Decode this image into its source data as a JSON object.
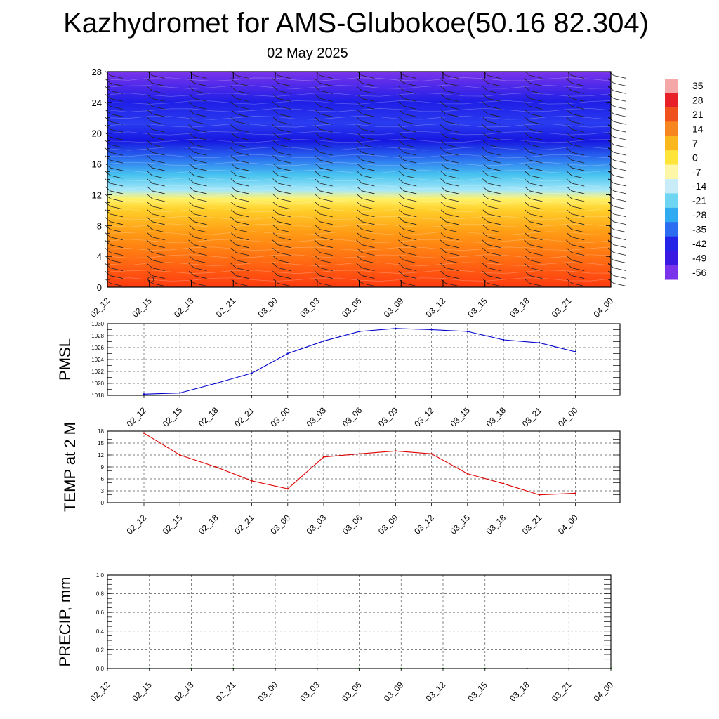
{
  "title": "Kazhydromet for AMS-Glubokoe(50.16 82.304)",
  "subtitle": "02 May 2025",
  "chart_data": [
    {
      "type": "heatmap",
      "id": "cross-section",
      "x": [
        "02_12",
        "02_15",
        "02_18",
        "02_21",
        "03_00",
        "03_03",
        "03_06",
        "03_09",
        "03_12",
        "03_15",
        "03_18",
        "03_21",
        "04_00"
      ],
      "yticks": [
        0,
        4,
        8,
        12,
        16,
        20,
        24,
        28
      ],
      "ylim": [
        0,
        28
      ],
      "levels": [
        0,
        1,
        2,
        3,
        4,
        5,
        6,
        7,
        8,
        9,
        10,
        11,
        12,
        13,
        14,
        15,
        16,
        17,
        18,
        19,
        20,
        21,
        22,
        23,
        24,
        25,
        26,
        27,
        28
      ],
      "temperature_profile": [
        20,
        19,
        18,
        16,
        14,
        12,
        10,
        8,
        6,
        4,
        2,
        0,
        -10,
        -20,
        -28,
        -34,
        -38,
        -45,
        -50,
        -55,
        -56,
        -55,
        -54,
        -55,
        -56,
        -58,
        -58,
        -60,
        -62
      ],
      "colorbar": {
        "labels": [
          "35",
          "28",
          "21",
          "14",
          "7",
          "0",
          "-7",
          "-14",
          "-21",
          "-28",
          "-35",
          "-42",
          "-49",
          "-56"
        ],
        "colors": [
          "#f4a8a8",
          "#e8202a",
          "#f0521e",
          "#f68620",
          "#fbb81e",
          "#ffe53a",
          "#fff7a8",
          "#c8ecf8",
          "#6ed6f2",
          "#30aaf0",
          "#2c6cf0",
          "#2424e8",
          "#3a1ae2",
          "#7a32ea"
        ]
      }
    },
    {
      "type": "line",
      "id": "pmsl",
      "ylabel": "PMSL",
      "x": [
        "02_12",
        "02_15",
        "02_18",
        "02_21",
        "03_00",
        "03_03",
        "03_06",
        "03_09",
        "03_12",
        "03_15",
        "03_18",
        "03_21",
        "04_00"
      ],
      "series": [
        {
          "values": [
            1018.2,
            1018.4,
            1020.0,
            1021.7,
            1025.0,
            1027.1,
            1028.7,
            1029.2,
            1029.0,
            1028.7,
            1027.3,
            1026.8,
            1025.3
          ],
          "color": "#0000cc"
        }
      ],
      "ylim": [
        1018,
        1030
      ],
      "yticks": [
        1018,
        1020,
        1022,
        1024,
        1026,
        1028,
        1030
      ],
      "grid": true
    },
    {
      "type": "line",
      "id": "temp2m",
      "ylabel": "TEMP at 2 M",
      "x": [
        "02_12",
        "02_15",
        "02_18",
        "02_21",
        "03_00",
        "03_03",
        "03_06",
        "03_09",
        "03_12",
        "03_15",
        "03_18",
        "03_21",
        "04_00"
      ],
      "series": [
        {
          "values": [
            17.5,
            12.0,
            9.0,
            5.5,
            3.5,
            11.5,
            12.3,
            13.0,
            12.3,
            7.3,
            4.8,
            2.0,
            2.4
          ],
          "color": "#dd0000"
        }
      ],
      "ylim": [
        0,
        18
      ],
      "yticks": [
        0,
        3,
        6,
        9,
        12,
        15,
        18
      ],
      "grid": true
    },
    {
      "type": "line",
      "id": "precip",
      "ylabel": "PRECIP, mm",
      "x": [
        "02_12",
        "02_15",
        "02_18",
        "02_21",
        "03_00",
        "03_03",
        "03_06",
        "03_09",
        "03_12",
        "03_15",
        "03_18",
        "03_21",
        "04_00"
      ],
      "series": [
        {
          "values": [
            0,
            0,
            0,
            0,
            0,
            0,
            0,
            0,
            0,
            0,
            0,
            0,
            0
          ],
          "color": "#006600"
        }
      ],
      "ylim": [
        0,
        1
      ],
      "yticks": [
        "0.0",
        "0.2",
        "0.4",
        "0.6",
        "0.8",
        "1.0"
      ],
      "grid": true
    }
  ]
}
